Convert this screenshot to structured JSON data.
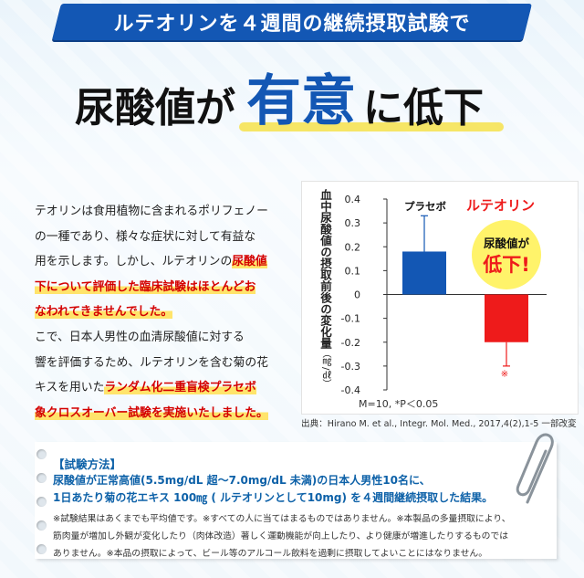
{
  "banner": {
    "text": "ルテオリンを４週間の継続摂取試験で"
  },
  "headline": {
    "part1": "尿酸値が",
    "part2": "有意",
    "part3": "に低下"
  },
  "body_text": {
    "lines": [
      [
        {
          "t": "テオリンは食用植物に含まれるポリフェノー"
        }
      ],
      [
        {
          "t": "の一種であり、様々な症状に対して有益な"
        }
      ],
      [
        {
          "t": "用を示します。しかし、ルテオリンの"
        },
        {
          "t": "尿酸値",
          "hl": true
        }
      ],
      [
        {
          "t": "下について評価した臨床試験はほとんどお",
          "hl": true
        }
      ],
      [
        {
          "t": "なわれてきませんでした。",
          "hl": true
        }
      ],
      [
        {
          "t": "こで、日本人男性の血清尿酸値に対する"
        }
      ],
      [
        {
          "t": "響を評価するため、ルテオリンを含む菊の花"
        }
      ],
      [
        {
          "t": "キスを用いた"
        },
        {
          "t": "ランダム化二重盲検プラセボ",
          "hl": true
        }
      ],
      [
        {
          "t": "象クロスオーバー試験を実施いたしました。",
          "hl": true
        }
      ]
    ]
  },
  "chart_data": {
    "type": "bar",
    "categories": [
      "プラセボ",
      "ルテオリン"
    ],
    "values": [
      0.18,
      -0.2
    ],
    "error_bars": [
      0.15,
      0.1
    ],
    "colors": [
      "#1357b4",
      "#ee1b1b"
    ],
    "ylim": [
      -0.4,
      0.4
    ],
    "yticks": [
      "0.4",
      "0.3",
      "0.2",
      "0.1",
      "0",
      "-0.1",
      "-0.2",
      "-0.3",
      "-0.4"
    ],
    "ylabel": "血中尿酸値の摂取前後の変化量",
    "ylabel_unit": "（㎎/㎗）",
    "label_placebo": "プラセボ",
    "label_luteolin": "ルテオリン",
    "significance_mark": "※",
    "callout": {
      "line1": "尿酸値が",
      "line2": "低下!"
    },
    "note": "M=10, *P＜0.05",
    "source": "出典：Hirano M. et al., Integr. Mol. Med., 2017,4(2),1-5 一部改変"
  },
  "method": {
    "title": "【試験方法】",
    "line1": "尿酸値が正常高値(5.5mg/dL 超〜7.0mg/dL 未満)の日本人男性10名に、",
    "line2": "1日あたり菊の花エキス 100㎎ ( ルテオリンとして10mg) を４週間継続摂取した結果。",
    "notes": [
      "※試験結果はあくまでも平均値です。※すべての人に当てはまるものではありません。※本製品の多量摂取により、",
      "筋肉量が増加し外観が変化したり（肉体改造）著しく運動機能が向上したり、より健康が増進したりするものでは",
      "ありません。※本品の摂取によって、ビール等のアルコール飲料を過剰に摂取してよいことにはなりません。"
    ]
  },
  "colors": {
    "accent_blue": "#1357b4",
    "accent_red": "#ee1b1b",
    "highlight": "#ffe46b"
  }
}
